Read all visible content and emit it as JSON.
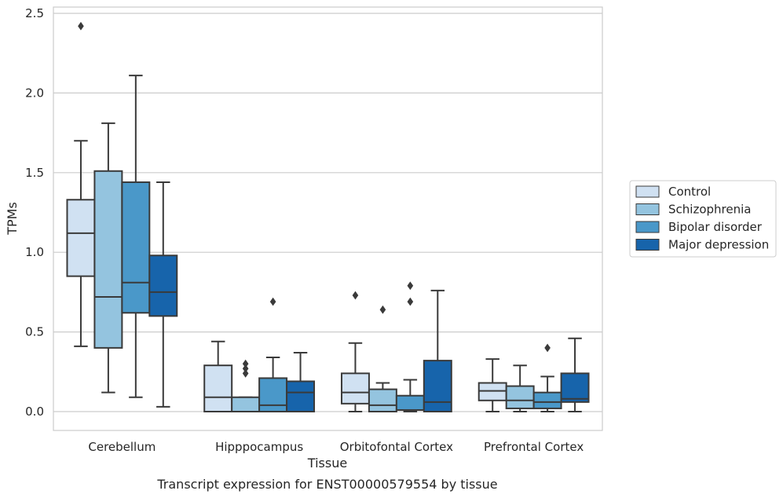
{
  "chart_data": {
    "type": "boxplot",
    "title": "",
    "caption": "Transcript expression for ENST00000579554 by tissue",
    "xlabel": "Tissue",
    "ylabel": "TPMs",
    "ylim": [
      -0.12,
      2.55
    ],
    "yticks": [
      0.0,
      0.5,
      1.0,
      1.5,
      2.0,
      2.5
    ],
    "ytick_labels": [
      "0.0",
      "0.5",
      "1.0",
      "1.5",
      "2.0",
      "2.5"
    ],
    "grid": "horizontal",
    "legend_position": "right",
    "categories": [
      "Cerebellum",
      "Hipppocampus",
      "Orbitofontal Cortex",
      "Prefrontal Cortex"
    ],
    "series": [
      {
        "name": "Control",
        "color": "#d0e1f2",
        "boxes": [
          {
            "whislo": 0.41,
            "q1": 0.85,
            "med": 1.12,
            "q3": 1.33,
            "whishi": 1.7,
            "fliers": [
              2.42
            ]
          },
          {
            "whislo": 0.0,
            "q1": 0.0,
            "med": 0.09,
            "q3": 0.29,
            "whishi": 0.44,
            "fliers": []
          },
          {
            "whislo": 0.0,
            "q1": 0.05,
            "med": 0.12,
            "q3": 0.24,
            "whishi": 0.43,
            "fliers": [
              0.73
            ]
          },
          {
            "whislo": 0.0,
            "q1": 0.07,
            "med": 0.13,
            "q3": 0.18,
            "whishi": 0.33,
            "fliers": []
          }
        ]
      },
      {
        "name": "Schizophrenia",
        "color": "#94c4df",
        "boxes": [
          {
            "whislo": 0.12,
            "q1": 0.4,
            "med": 0.72,
            "q3": 1.51,
            "whishi": 1.81,
            "fliers": []
          },
          {
            "whislo": 0.0,
            "q1": 0.0,
            "med": 0.0,
            "q3": 0.09,
            "whishi": 0.09,
            "fliers": [
              0.24,
              0.27,
              0.3
            ]
          },
          {
            "whislo": 0.0,
            "q1": 0.0,
            "med": 0.04,
            "q3": 0.14,
            "whishi": 0.18,
            "fliers": [
              0.64
            ]
          },
          {
            "whislo": 0.0,
            "q1": 0.02,
            "med": 0.07,
            "q3": 0.16,
            "whishi": 0.29,
            "fliers": []
          }
        ]
      },
      {
        "name": "Bipolar disorder",
        "color": "#4a98c9",
        "boxes": [
          {
            "whislo": 0.09,
            "q1": 0.62,
            "med": 0.81,
            "q3": 1.44,
            "whishi": 2.11,
            "fliers": []
          },
          {
            "whislo": 0.0,
            "q1": 0.0,
            "med": 0.04,
            "q3": 0.21,
            "whishi": 0.34,
            "fliers": [
              0.69
            ]
          },
          {
            "whislo": 0.0,
            "q1": 0.01,
            "med": 0.01,
            "q3": 0.1,
            "whishi": 0.2,
            "fliers": [
              0.69,
              0.79
            ]
          },
          {
            "whislo": 0.0,
            "q1": 0.02,
            "med": 0.06,
            "q3": 0.12,
            "whishi": 0.22,
            "fliers": [
              0.4
            ]
          }
        ]
      },
      {
        "name": "Major depression",
        "color": "#1764ab",
        "boxes": [
          {
            "whislo": 0.03,
            "q1": 0.6,
            "med": 0.75,
            "q3": 0.98,
            "whishi": 1.44,
            "fliers": []
          },
          {
            "whislo": 0.0,
            "q1": 0.0,
            "med": 0.12,
            "q3": 0.19,
            "whishi": 0.37,
            "fliers": []
          },
          {
            "whislo": 0.0,
            "q1": 0.0,
            "med": 0.06,
            "q3": 0.32,
            "whishi": 0.76,
            "fliers": []
          },
          {
            "whislo": 0.0,
            "q1": 0.06,
            "med": 0.08,
            "q3": 0.24,
            "whishi": 0.46,
            "fliers": []
          }
        ]
      }
    ]
  }
}
